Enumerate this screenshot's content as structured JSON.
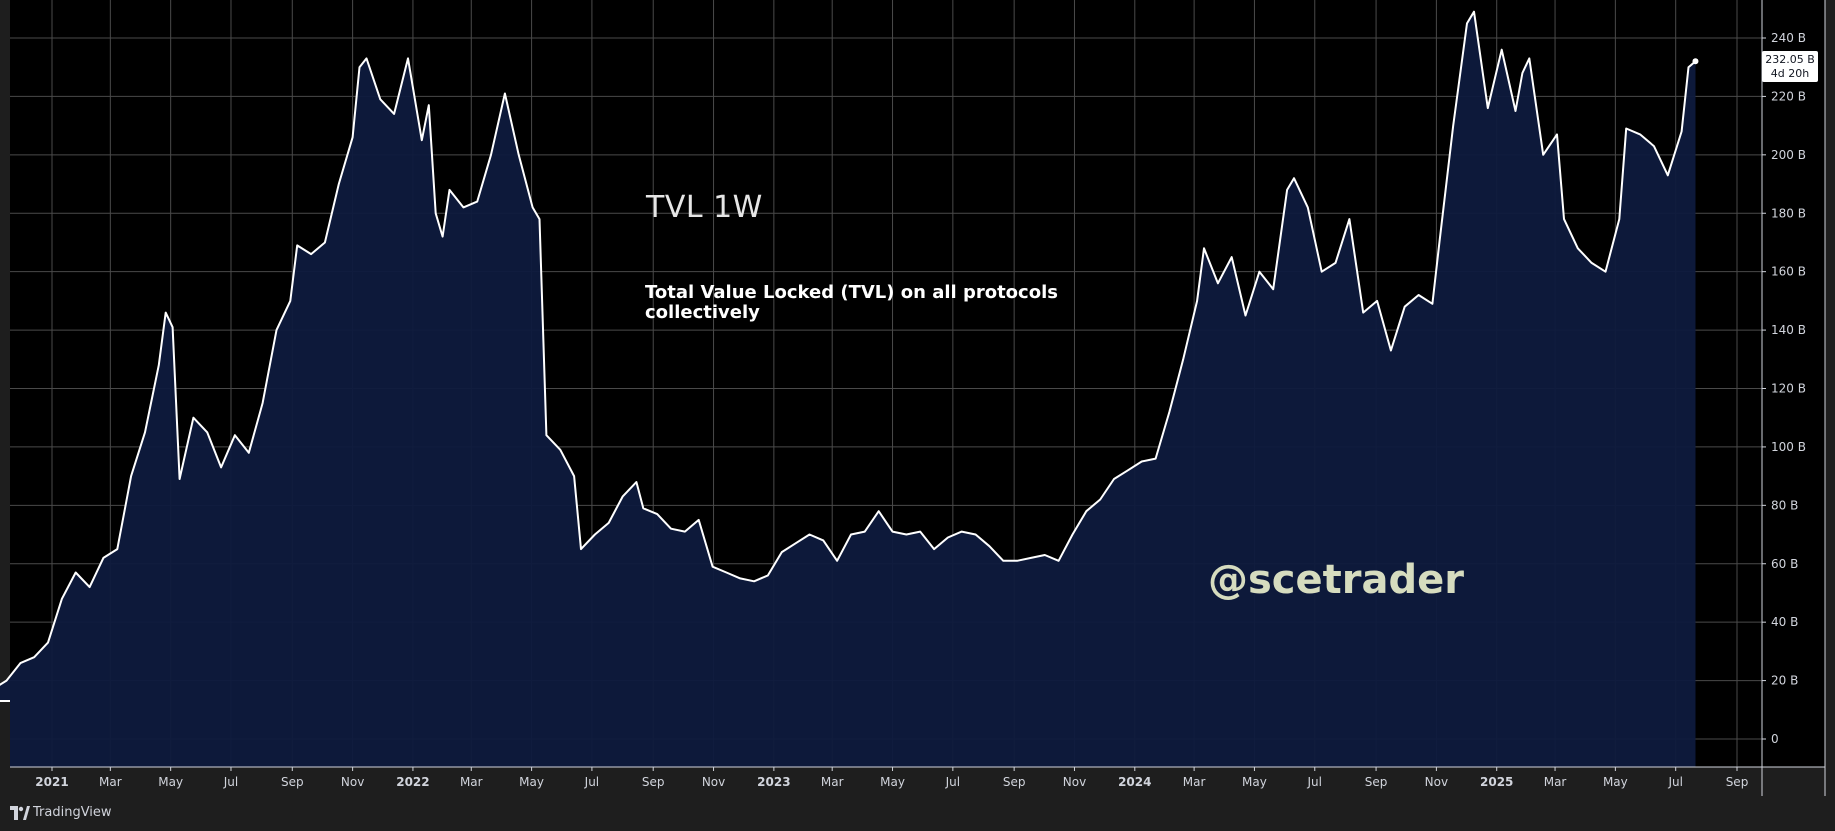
{
  "chart_data": {
    "type": "area",
    "title": "TVL 1W",
    "subtitle": "Total Value Locked (TVL) on all protocols collectively",
    "watermark": "@scetrader",
    "ylim": [
      -10,
      250
    ],
    "y_ticks": [
      {
        "value": 0,
        "label": "0"
      },
      {
        "value": 20,
        "label": "20 B"
      },
      {
        "value": 40,
        "label": "40 B"
      },
      {
        "value": 60,
        "label": "60 B"
      },
      {
        "value": 80,
        "label": "80 B"
      },
      {
        "value": 100,
        "label": "100 B"
      },
      {
        "value": 120,
        "label": "120 B"
      },
      {
        "value": 140,
        "label": "140 B"
      },
      {
        "value": 160,
        "label": "160 B"
      },
      {
        "value": 180,
        "label": "180 B"
      },
      {
        "value": 200,
        "label": "200 B"
      },
      {
        "value": 220,
        "label": "220 B"
      },
      {
        "value": 240,
        "label": "240 B"
      }
    ],
    "x_ticks": [
      {
        "date": "2021-01-01",
        "label": "2021",
        "year": true
      },
      {
        "date": "2021-03-01",
        "label": "Mar"
      },
      {
        "date": "2021-05-01",
        "label": "May"
      },
      {
        "date": "2021-07-01",
        "label": "Jul"
      },
      {
        "date": "2021-09-01",
        "label": "Sep"
      },
      {
        "date": "2021-11-01",
        "label": "Nov"
      },
      {
        "date": "2022-01-01",
        "label": "2022",
        "year": true
      },
      {
        "date": "2022-03-01",
        "label": "Mar"
      },
      {
        "date": "2022-05-01",
        "label": "May"
      },
      {
        "date": "2022-07-01",
        "label": "Jul"
      },
      {
        "date": "2022-09-01",
        "label": "Sep"
      },
      {
        "date": "2022-11-01",
        "label": "Nov"
      },
      {
        "date": "2023-01-01",
        "label": "2023",
        "year": true
      },
      {
        "date": "2023-03-01",
        "label": "Mar"
      },
      {
        "date": "2023-05-01",
        "label": "May"
      },
      {
        "date": "2023-07-01",
        "label": "Jul"
      },
      {
        "date": "2023-09-01",
        "label": "Sep"
      },
      {
        "date": "2023-11-01",
        "label": "Nov"
      },
      {
        "date": "2024-01-01",
        "label": "2024",
        "year": true
      },
      {
        "date": "2024-03-01",
        "label": "Mar"
      },
      {
        "date": "2024-05-01",
        "label": "May"
      },
      {
        "date": "2024-07-01",
        "label": "Jul"
      },
      {
        "date": "2024-09-01",
        "label": "Sep"
      },
      {
        "date": "2024-11-01",
        "label": "Nov"
      },
      {
        "date": "2025-01-01",
        "label": "2025",
        "year": true
      },
      {
        "date": "2025-03-01",
        "label": "Mar"
      },
      {
        "date": "2025-05-01",
        "label": "May"
      },
      {
        "date": "2025-07-01",
        "label": "Jul"
      },
      {
        "date": "2025-09-01",
        "label": "Sep"
      }
    ],
    "series": [
      {
        "unit": "B USD",
        "color": "#ffffff",
        "fill": "#0e1a3d",
        "points": [
          [
            "2020-10-05",
            13
          ],
          [
            "2020-10-19",
            15
          ],
          [
            "2020-11-02",
            17
          ],
          [
            "2020-11-16",
            20
          ],
          [
            "2020-11-30",
            26
          ],
          [
            "2020-12-14",
            28
          ],
          [
            "2020-12-28",
            33
          ],
          [
            "2021-01-11",
            48
          ],
          [
            "2021-01-25",
            57
          ],
          [
            "2021-02-08",
            52
          ],
          [
            "2021-02-22",
            62
          ],
          [
            "2021-03-08",
            65
          ],
          [
            "2021-03-22",
            90
          ],
          [
            "2021-04-05",
            105
          ],
          [
            "2021-04-19",
            128
          ],
          [
            "2021-04-26",
            146
          ],
          [
            "2021-05-03",
            141
          ],
          [
            "2021-05-10",
            89
          ],
          [
            "2021-05-24",
            110
          ],
          [
            "2021-06-07",
            105
          ],
          [
            "2021-06-21",
            93
          ],
          [
            "2021-07-05",
            104
          ],
          [
            "2021-07-19",
            98
          ],
          [
            "2021-08-02",
            115
          ],
          [
            "2021-08-16",
            140
          ],
          [
            "2021-08-30",
            150
          ],
          [
            "2021-09-06",
            169
          ],
          [
            "2021-09-20",
            166
          ],
          [
            "2021-10-04",
            170
          ],
          [
            "2021-10-18",
            190
          ],
          [
            "2021-11-01",
            206
          ],
          [
            "2021-11-08",
            230
          ],
          [
            "2021-11-15",
            233
          ],
          [
            "2021-11-29",
            219
          ],
          [
            "2021-12-13",
            214
          ],
          [
            "2021-12-27",
            233
          ],
          [
            "2022-01-10",
            205
          ],
          [
            "2022-01-17",
            217
          ],
          [
            "2022-01-24",
            180
          ],
          [
            "2022-01-31",
            172
          ],
          [
            "2022-02-07",
            188
          ],
          [
            "2022-02-21",
            182
          ],
          [
            "2022-03-07",
            184
          ],
          [
            "2022-03-21",
            200
          ],
          [
            "2022-04-04",
            221
          ],
          [
            "2022-04-18",
            200
          ],
          [
            "2022-05-02",
            182
          ],
          [
            "2022-05-09",
            178
          ],
          [
            "2022-05-16",
            104
          ],
          [
            "2022-05-30",
            99
          ],
          [
            "2022-06-13",
            90
          ],
          [
            "2022-06-20",
            65
          ],
          [
            "2022-07-04",
            70
          ],
          [
            "2022-07-18",
            74
          ],
          [
            "2022-08-01",
            83
          ],
          [
            "2022-08-15",
            88
          ],
          [
            "2022-08-22",
            79
          ],
          [
            "2022-09-05",
            77
          ],
          [
            "2022-09-19",
            72
          ],
          [
            "2022-10-03",
            71
          ],
          [
            "2022-10-17",
            75
          ],
          [
            "2022-10-31",
            59
          ],
          [
            "2022-11-14",
            57
          ],
          [
            "2022-11-28",
            55
          ],
          [
            "2022-12-12",
            54
          ],
          [
            "2022-12-26",
            56
          ],
          [
            "2023-01-09",
            64
          ],
          [
            "2023-01-23",
            67
          ],
          [
            "2023-02-06",
            70
          ],
          [
            "2023-02-20",
            68
          ],
          [
            "2023-03-06",
            61
          ],
          [
            "2023-03-20",
            70
          ],
          [
            "2023-04-03",
            71
          ],
          [
            "2023-04-17",
            78
          ],
          [
            "2023-05-01",
            71
          ],
          [
            "2023-05-15",
            70
          ],
          [
            "2023-05-29",
            71
          ],
          [
            "2023-06-12",
            65
          ],
          [
            "2023-06-26",
            69
          ],
          [
            "2023-07-10",
            71
          ],
          [
            "2023-07-24",
            70
          ],
          [
            "2023-08-07",
            66
          ],
          [
            "2023-08-21",
            61
          ],
          [
            "2023-09-04",
            61
          ],
          [
            "2023-09-18",
            62
          ],
          [
            "2023-10-02",
            63
          ],
          [
            "2023-10-16",
            61
          ],
          [
            "2023-10-30",
            70
          ],
          [
            "2023-11-13",
            78
          ],
          [
            "2023-11-27",
            82
          ],
          [
            "2023-12-11",
            89
          ],
          [
            "2023-12-25",
            92
          ],
          [
            "2024-01-08",
            95
          ],
          [
            "2024-01-22",
            96
          ],
          [
            "2024-02-05",
            112
          ],
          [
            "2024-02-19",
            130
          ],
          [
            "2024-03-04",
            150
          ],
          [
            "2024-03-11",
            168
          ],
          [
            "2024-03-25",
            156
          ],
          [
            "2024-04-08",
            165
          ],
          [
            "2024-04-22",
            145
          ],
          [
            "2024-05-06",
            160
          ],
          [
            "2024-05-20",
            154
          ],
          [
            "2024-06-03",
            188
          ],
          [
            "2024-06-10",
            192
          ],
          [
            "2024-06-24",
            182
          ],
          [
            "2024-07-08",
            160
          ],
          [
            "2024-07-22",
            163
          ],
          [
            "2024-08-05",
            178
          ],
          [
            "2024-08-19",
            146
          ],
          [
            "2024-09-02",
            150
          ],
          [
            "2024-09-16",
            133
          ],
          [
            "2024-09-30",
            148
          ],
          [
            "2024-10-14",
            152
          ],
          [
            "2024-10-28",
            149
          ],
          [
            "2024-11-04",
            170
          ],
          [
            "2024-11-18",
            210
          ],
          [
            "2024-12-02",
            245
          ],
          [
            "2024-12-09",
            249
          ],
          [
            "2024-12-23",
            216
          ],
          [
            "2025-01-06",
            236
          ],
          [
            "2025-01-20",
            215
          ],
          [
            "2025-01-27",
            228
          ],
          [
            "2025-02-03",
            233
          ],
          [
            "2025-02-17",
            200
          ],
          [
            "2025-03-03",
            207
          ],
          [
            "2025-03-10",
            178
          ],
          [
            "2025-03-24",
            168
          ],
          [
            "2025-04-07",
            163
          ],
          [
            "2025-04-21",
            160
          ],
          [
            "2025-05-05",
            178
          ],
          [
            "2025-05-12",
            209
          ],
          [
            "2025-05-26",
            207
          ],
          [
            "2025-06-09",
            203
          ],
          [
            "2025-06-23",
            193
          ],
          [
            "2025-07-07",
            208
          ],
          [
            "2025-07-14",
            230
          ],
          [
            "2025-07-21",
            232.05
          ]
        ]
      }
    ],
    "last_price_label": "232.05 B",
    "countdown_label": "4d 20h"
  },
  "footer": {
    "brand": "TradingView"
  },
  "colors": {
    "background": "#000000",
    "grid": "#4a4a4a",
    "line": "#ffffff",
    "area": "#0e1a3d"
  }
}
